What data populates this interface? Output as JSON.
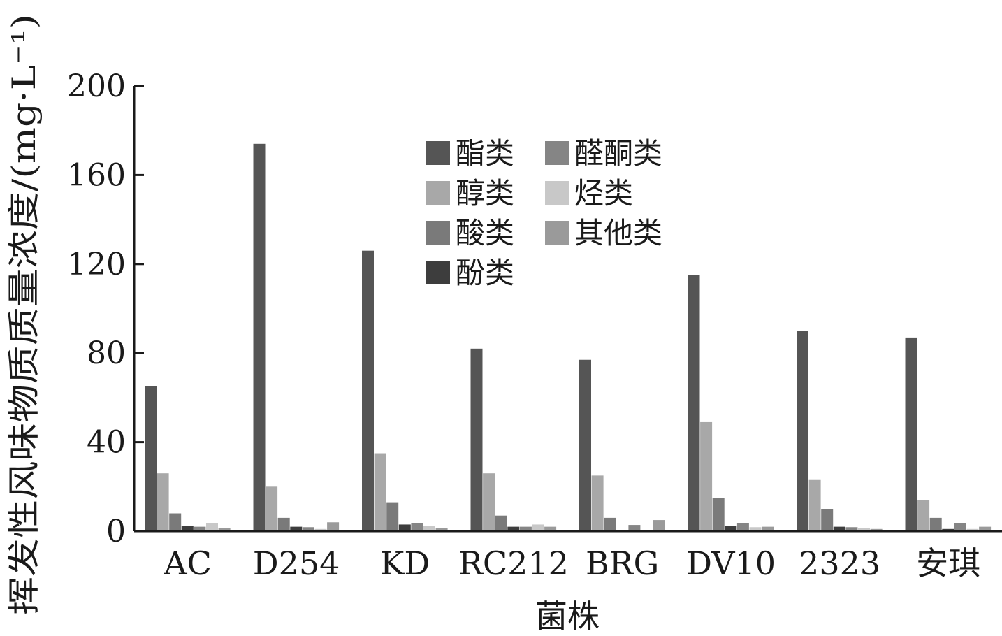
{
  "chart_data": {
    "type": "bar",
    "xlabel": "菌株",
    "ylabel": "挥发性风味物质质量浓度/(mg·L⁻¹)",
    "ylim": [
      0,
      200
    ],
    "yticks": [
      "0",
      "40",
      "80",
      "120",
      "160",
      "200"
    ],
    "ytick_values": [
      0,
      40,
      80,
      120,
      160,
      200
    ],
    "grid": false,
    "legend_position": "top-center",
    "categories": [
      "AC",
      "D254",
      "KD",
      "RC212",
      "BRG",
      "DV10",
      "2323",
      "安琪"
    ],
    "series": [
      {
        "name": "酯类",
        "color": "#555555",
        "values": [
          65,
          174,
          126,
          82,
          77,
          115,
          90,
          87
        ]
      },
      {
        "name": "醇类",
        "color": "#a8a8a8",
        "values": [
          26,
          20,
          35,
          26,
          25,
          49,
          23,
          14
        ]
      },
      {
        "name": "酸类",
        "color": "#7a7a7a",
        "values": [
          8,
          6,
          13,
          7,
          6,
          15,
          10,
          6
        ]
      },
      {
        "name": "酚类",
        "color": "#3d3d3d",
        "values": [
          2.5,
          2,
          3,
          2,
          0.5,
          2.5,
          2,
          1
        ]
      },
      {
        "name": "醛酮类",
        "color": "#858585",
        "values": [
          2,
          1.8,
          3.5,
          2,
          2.8,
          3.5,
          1.8,
          3.5
        ]
      },
      {
        "name": "烃类",
        "color": "#c8c8c8",
        "values": [
          3.5,
          1,
          2.5,
          3,
          0.5,
          1.8,
          1.5,
          1
        ]
      },
      {
        "name": "其他类",
        "color": "#9a9a9a",
        "values": [
          1.5,
          4,
          1.5,
          2,
          5,
          2,
          1,
          2
        ]
      }
    ]
  }
}
